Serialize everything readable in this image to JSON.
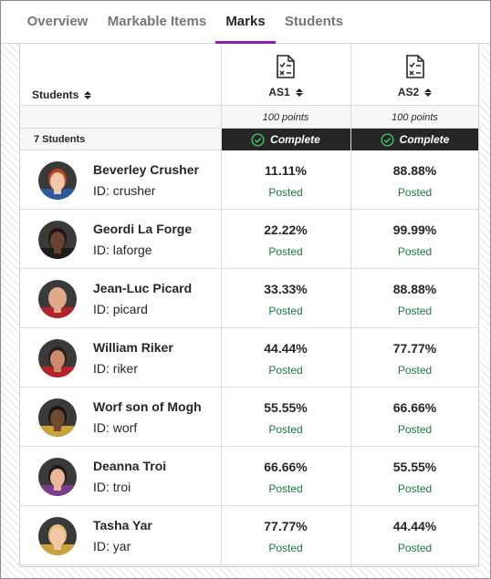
{
  "tabs": [
    {
      "label": "Overview",
      "active": false
    },
    {
      "label": "Markable Items",
      "active": false
    },
    {
      "label": "Marks",
      "active": true
    },
    {
      "label": "Students",
      "active": false
    }
  ],
  "colors": {
    "accent": "#8f1fb0",
    "posted": "#1a7a3b",
    "complete_bg": "#262626"
  },
  "grid": {
    "students_header": "Students",
    "student_count": "7 Students",
    "assignments": [
      {
        "name": "AS1",
        "points": "100 points",
        "status": "Complete",
        "icon": "assignment-doc-icon"
      },
      {
        "name": "AS2",
        "points": "100 points",
        "status": "Complete",
        "icon": "assignment-doc-icon"
      }
    ],
    "students": [
      {
        "name": "Beverley Crusher",
        "id": "ID: crusher",
        "grades": [
          {
            "value": "11.11%",
            "status": "Posted"
          },
          {
            "value": "88.88%",
            "status": "Posted"
          }
        ],
        "avatar": {
          "skin": "#f1c9a8",
          "hair": "#c0431f",
          "shirt": "#2c5aa0"
        }
      },
      {
        "name": "Geordi La Forge",
        "id": "ID: laforge",
        "grades": [
          {
            "value": "22.22%",
            "status": "Posted"
          },
          {
            "value": "99.99%",
            "status": "Posted"
          }
        ],
        "avatar": {
          "skin": "#6b4230",
          "hair": "#1e1410",
          "shirt": "#1d1d1d"
        }
      },
      {
        "name": "Jean-Luc Picard",
        "id": "ID: picard",
        "grades": [
          {
            "value": "33.33%",
            "status": "Posted"
          },
          {
            "value": "88.88%",
            "status": "Posted"
          }
        ],
        "avatar": {
          "skin": "#e0a98a",
          "hair": "#e0a98a",
          "shirt": "#b3232a"
        }
      },
      {
        "name": "William Riker",
        "id": "ID: riker",
        "grades": [
          {
            "value": "44.44%",
            "status": "Posted"
          },
          {
            "value": "77.77%",
            "status": "Posted"
          }
        ],
        "avatar": {
          "skin": "#c98b6a",
          "hair": "#2b1c14",
          "shirt": "#b3232a"
        }
      },
      {
        "name": "Worf son of Mogh",
        "id": "ID: worf",
        "grades": [
          {
            "value": "55.55%",
            "status": "Posted"
          },
          {
            "value": "66.66%",
            "status": "Posted"
          }
        ],
        "avatar": {
          "skin": "#6e4a30",
          "hair": "#1a120c",
          "shirt": "#c9a23a"
        }
      },
      {
        "name": "Deanna Troi",
        "id": "ID: troi",
        "grades": [
          {
            "value": "66.66%",
            "status": "Posted"
          },
          {
            "value": "55.55%",
            "status": "Posted"
          }
        ],
        "avatar": {
          "skin": "#e8b898",
          "hair": "#231712",
          "shirt": "#7c3c8a"
        }
      },
      {
        "name": "Tasha Yar",
        "id": "ID: yar",
        "grades": [
          {
            "value": "77.77%",
            "status": "Posted"
          },
          {
            "value": "44.44%",
            "status": "Posted"
          }
        ],
        "avatar": {
          "skin": "#f0c8a8",
          "hair": "#e3c27a",
          "shirt": "#c9a23a"
        }
      }
    ]
  }
}
